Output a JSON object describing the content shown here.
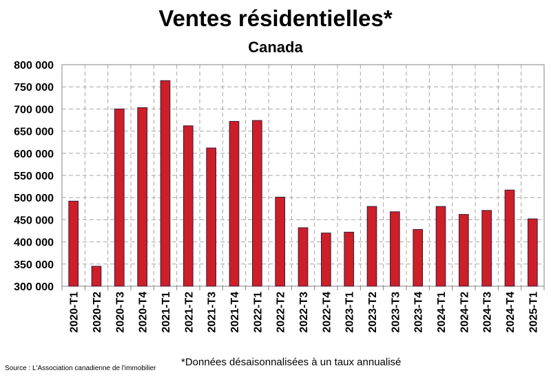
{
  "chart_data": {
    "type": "bar",
    "title": "Ventes résidentielles*",
    "subtitle": "Canada",
    "categories": [
      "2020-T1",
      "2020-T2",
      "2020-T3",
      "2020-T4",
      "2021-T1",
      "2021-T2",
      "2021-T3",
      "2021-T4",
      "2022-T1",
      "2022-T2",
      "2022-T3",
      "2022-T4",
      "2023-T1",
      "2023-T2",
      "2023-T3",
      "2023-T4",
      "2024-T1",
      "2024-T2",
      "2024-T3",
      "2024-T4",
      "2025-T1"
    ],
    "values": [
      492000,
      345000,
      700000,
      703000,
      764000,
      662000,
      612000,
      672000,
      674000,
      501000,
      432000,
      420000,
      422000,
      480000,
      468000,
      428000,
      480000,
      462000,
      471000,
      517000,
      452000
    ],
    "ylim": [
      300000,
      800000
    ],
    "yticks": [
      300000,
      350000,
      400000,
      450000,
      500000,
      550000,
      600000,
      650000,
      700000,
      750000,
      800000
    ],
    "ytick_labels": [
      "300 000",
      "350 000",
      "400 000",
      "450 000",
      "500 000",
      "550 000",
      "600 000",
      "650 000",
      "700 000",
      "750 000",
      "800 000"
    ],
    "grid": true,
    "bar_color": "#cc1f28",
    "bar_edge_color": "#3a1a3a"
  },
  "footnote": "*Données désaisonnalisées à un taux annualisé",
  "source": "Source : L'Association canadienne de l'immobilier"
}
